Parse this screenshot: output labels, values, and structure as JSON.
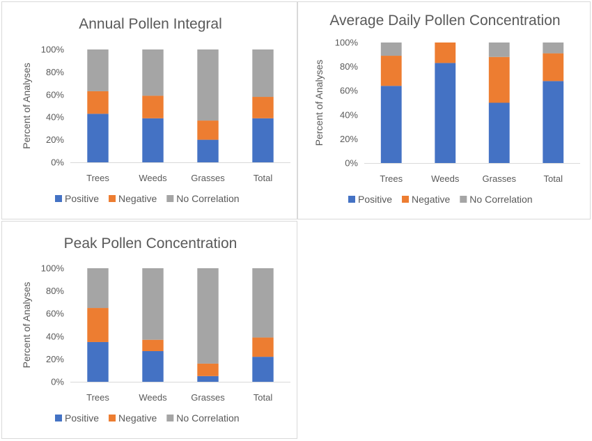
{
  "colors": {
    "positive": "#4472c4",
    "negative": "#ed7d31",
    "no_correlation": "#a5a5a5"
  },
  "chart_data": [
    {
      "type": "bar",
      "stacked": true,
      "title": "Annual Pollen Integral",
      "ylabel": "Percent of Analyses",
      "xlabel": "",
      "categories": [
        "Trees",
        "Weeds",
        "Grasses",
        "Total"
      ],
      "ylim": [
        0,
        100
      ],
      "yticks": [
        "0%",
        "20%",
        "40%",
        "60%",
        "80%",
        "100%"
      ],
      "series": [
        {
          "name": "Positive",
          "values": [
            43,
            39,
            20,
            39
          ]
        },
        {
          "name": "Negative",
          "values": [
            20,
            20,
            17,
            19
          ]
        },
        {
          "name": "No Correlation",
          "values": [
            37,
            41,
            63,
            42
          ]
        }
      ],
      "legend": "bottom",
      "grid": false
    },
    {
      "type": "bar",
      "stacked": true,
      "title": "Average Daily Pollen Concentration",
      "ylabel": "Percent of Analyses",
      "xlabel": "",
      "categories": [
        "Trees",
        "Weeds",
        "Grasses",
        "Total"
      ],
      "ylim": [
        0,
        100
      ],
      "yticks": [
        "0%",
        "20%",
        "40%",
        "60%",
        "80%",
        "100%"
      ],
      "series": [
        {
          "name": "Positive",
          "values": [
            64,
            83,
            50,
            68
          ]
        },
        {
          "name": "Negative",
          "values": [
            25,
            17,
            38,
            23
          ]
        },
        {
          "name": "No Correlation",
          "values": [
            11,
            0,
            12,
            9
          ]
        }
      ],
      "legend": "bottom",
      "grid": false
    },
    {
      "type": "bar",
      "stacked": true,
      "title": "Peak Pollen Concentration",
      "ylabel": "Percent of Analyses",
      "xlabel": "",
      "categories": [
        "Trees",
        "Weeds",
        "Grasses",
        "Total"
      ],
      "ylim": [
        0,
        100
      ],
      "yticks": [
        "0%",
        "20%",
        "40%",
        "60%",
        "80%",
        "100%"
      ],
      "series": [
        {
          "name": "Positive",
          "values": [
            35,
            27,
            5,
            22
          ]
        },
        {
          "name": "Negative",
          "values": [
            30,
            10,
            11,
            17
          ]
        },
        {
          "name": "No Correlation",
          "values": [
            35,
            63,
            84,
            61
          ]
        }
      ],
      "legend": "bottom",
      "grid": false
    }
  ]
}
